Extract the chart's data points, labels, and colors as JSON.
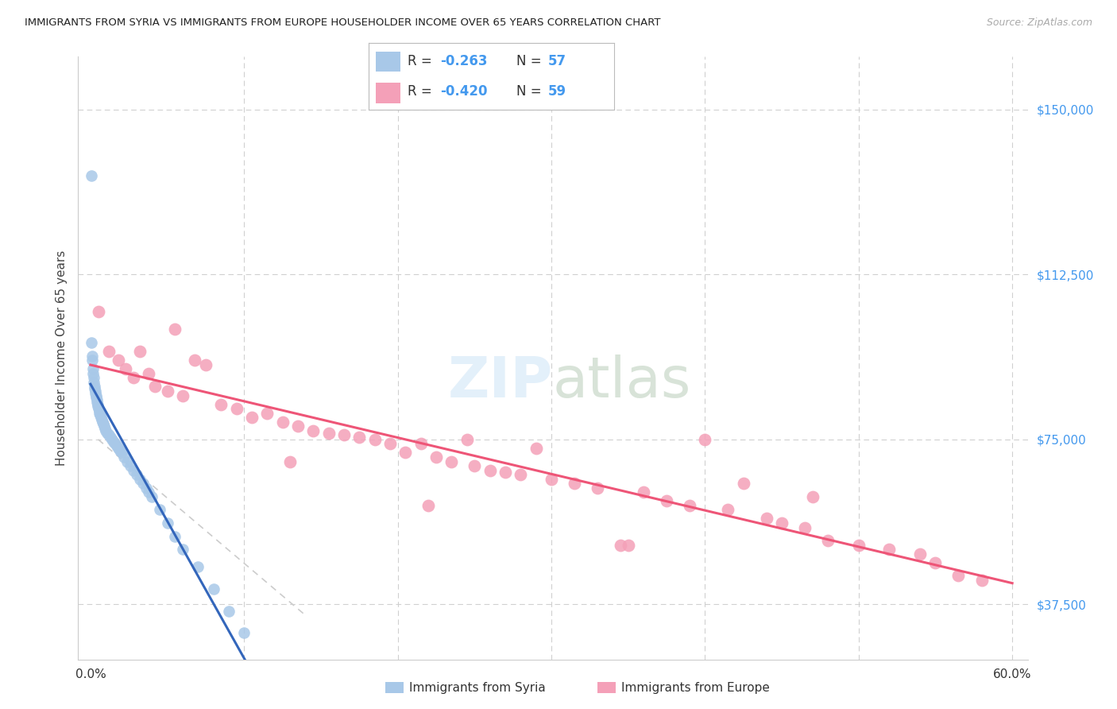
{
  "title": "IMMIGRANTS FROM SYRIA VS IMMIGRANTS FROM EUROPE HOUSEHOLDER INCOME OVER 65 YEARS CORRELATION CHART",
  "source": "Source: ZipAtlas.com",
  "ylabel": "Householder Income Over 65 years",
  "background_color": "#ffffff",
  "grid_color": "#d0d0d0",
  "syria_color": "#a8c8e8",
  "europe_color": "#f4a0b8",
  "syria_line_color": "#3366bb",
  "europe_line_color": "#ee5577",
  "dash_color": "#cccccc",
  "right_axis_color": "#4499ee",
  "ytick_labels": [
    "$37,500",
    "$75,000",
    "$112,500",
    "$150,000"
  ],
  "ytick_vals": [
    37500,
    75000,
    112500,
    150000
  ],
  "xmin": 0.0,
  "xmax": 60.0,
  "ymin": 25000,
  "ymax": 162000,
  "syria_x": [
    0.05,
    0.08,
    0.1,
    0.12,
    0.15,
    0.18,
    0.2,
    0.22,
    0.25,
    0.28,
    0.3,
    0.32,
    0.35,
    0.38,
    0.4,
    0.42,
    0.45,
    0.48,
    0.5,
    0.55,
    0.6,
    0.65,
    0.7,
    0.75,
    0.8,
    0.85,
    0.9,
    0.95,
    1.0,
    1.1,
    1.2,
    1.3,
    1.4,
    1.5,
    1.6,
    1.7,
    1.8,
    1.9,
    2.0,
    2.2,
    2.4,
    2.6,
    2.8,
    3.0,
    3.2,
    3.4,
    3.6,
    3.8,
    4.0,
    4.5,
    5.0,
    5.5,
    6.0,
    7.0,
    8.0,
    9.0,
    10.0
  ],
  "syria_y": [
    135000,
    97000,
    94000,
    93000,
    91000,
    90000,
    89000,
    88000,
    87000,
    86500,
    86000,
    85500,
    85000,
    84500,
    84000,
    83500,
    83000,
    82500,
    82000,
    81500,
    81000,
    80500,
    80000,
    79500,
    79000,
    78500,
    78000,
    77500,
    77000,
    76500,
    76000,
    75500,
    75000,
    74500,
    74000,
    73500,
    73000,
    72500,
    72000,
    71000,
    70000,
    69000,
    68000,
    67000,
    66000,
    65000,
    64000,
    63000,
    62000,
    59000,
    56000,
    53000,
    50000,
    46000,
    41000,
    36000,
    31000
  ],
  "europe_x": [
    0.5,
    1.2,
    1.8,
    2.3,
    2.8,
    3.2,
    3.8,
    4.2,
    5.0,
    5.5,
    6.0,
    6.8,
    7.5,
    8.5,
    9.5,
    10.5,
    11.5,
    12.5,
    13.5,
    14.5,
    15.5,
    16.5,
    17.5,
    18.5,
    19.5,
    20.5,
    21.5,
    22.5,
    23.5,
    24.5,
    25.0,
    26.0,
    27.0,
    28.0,
    29.0,
    30.0,
    31.5,
    33.0,
    34.5,
    36.0,
    37.5,
    39.0,
    40.0,
    41.5,
    42.5,
    44.0,
    45.0,
    46.5,
    48.0,
    50.0,
    52.0,
    54.0,
    55.0,
    56.5,
    58.0,
    47.0,
    35.0,
    22.0,
    13.0
  ],
  "europe_y": [
    104000,
    95000,
    93000,
    91000,
    89000,
    95000,
    90000,
    87000,
    86000,
    100000,
    85000,
    93000,
    92000,
    83000,
    82000,
    80000,
    81000,
    79000,
    78000,
    77000,
    76500,
    76000,
    75500,
    75000,
    74000,
    72000,
    74000,
    71000,
    70000,
    75000,
    69000,
    68000,
    67500,
    67000,
    73000,
    66000,
    65000,
    64000,
    51000,
    63000,
    61000,
    60000,
    75000,
    59000,
    65000,
    57000,
    56000,
    55000,
    52000,
    51000,
    50000,
    49000,
    47000,
    44000,
    43000,
    62000,
    51000,
    60000,
    70000
  ],
  "legend_syria_R": "-0.263",
  "legend_syria_N": "57",
  "legend_europe_R": "-0.420",
  "legend_europe_N": "59",
  "legend_label_syria": "Immigrants from Syria",
  "legend_label_europe": "Immigrants from Europe"
}
